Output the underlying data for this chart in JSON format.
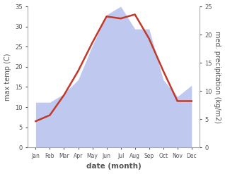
{
  "months": [
    "Jan",
    "Feb",
    "Mar",
    "Apr",
    "May",
    "Jun",
    "Jul",
    "Aug",
    "Sep",
    "Oct",
    "Nov",
    "Dec"
  ],
  "temp": [
    6.5,
    8.0,
    13.0,
    19.0,
    26.0,
    32.5,
    32.0,
    33.0,
    27.0,
    19.0,
    11.5,
    11.5
  ],
  "precip_kg": [
    8.0,
    8.0,
    9.5,
    12.0,
    18.0,
    23.5,
    25.0,
    21.0,
    21.0,
    12.0,
    9.0,
    11.0
  ],
  "temp_color": "#c0392b",
  "precip_fill_color": "#bfc9f0",
  "ylabel_left": "max temp (C)",
  "ylabel_right": "med. precipitation (kg/m2)",
  "xlabel": "date (month)",
  "ylim_left": [
    0,
    35
  ],
  "ylim_right": [
    0,
    25
  ],
  "yticks_left": [
    0,
    5,
    10,
    15,
    20,
    25,
    30,
    35
  ],
  "yticks_right": [
    0,
    5,
    10,
    15,
    20,
    25
  ],
  "bg_color": "#ffffff",
  "spine_color": "#aaaaaa",
  "label_color": "#555555"
}
